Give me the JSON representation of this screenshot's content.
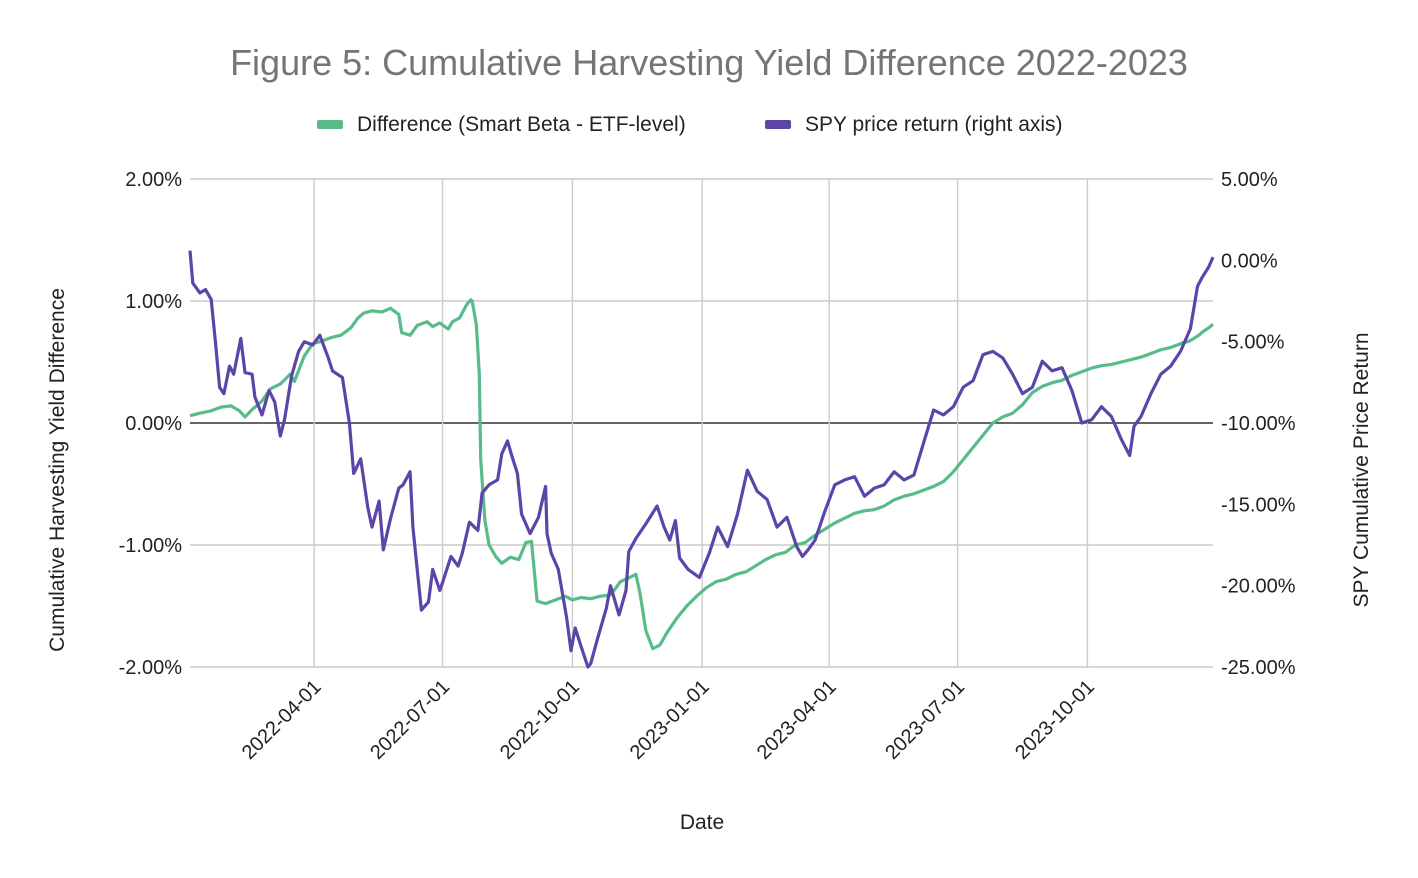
{
  "chart_data": {
    "type": "line",
    "title": "Figure 5: Cumulative Harvesting Yield Difference 2022-2023",
    "xlabel": "Date",
    "ylabel_left": "Cumulative Harvesting Yield Difference",
    "ylabel_right": "SPY Cumulative Price Return",
    "legend_position": "top",
    "grid": true,
    "x_range": [
      "2022-01-03",
      "2023-12-29"
    ],
    "x_ticks": [
      "2022-04-01",
      "2022-07-01",
      "2022-10-01",
      "2023-01-01",
      "2023-04-01",
      "2023-07-01",
      "2023-10-01"
    ],
    "ylim_left": [
      -0.02,
      0.02
    ],
    "ylim_right": [
      -0.25,
      0.05
    ],
    "y_ticks_left": [
      "2.00%",
      "1.00%",
      "0.00%",
      "-1.00%",
      "-2.00%"
    ],
    "y_ticks_right": [
      "5.00%",
      "0.00%",
      "-5.00%",
      "-10.00%",
      "-15.00%",
      "-20.00%",
      "-25.00%"
    ],
    "colors": {
      "difference": "#57bb8a",
      "spy": "#5b45a8"
    },
    "series": [
      {
        "name": "Difference (Smart Beta - ETF-level)",
        "axis": "left",
        "points": [
          [
            "2022-01-03",
            0.0006
          ],
          [
            "2022-01-10",
            0.0008
          ],
          [
            "2022-01-18",
            0.001
          ],
          [
            "2022-01-25",
            0.0013
          ],
          [
            "2022-02-01",
            0.0014
          ],
          [
            "2022-02-07",
            0.001
          ],
          [
            "2022-02-11",
            0.0005
          ],
          [
            "2022-02-16",
            0.0011
          ],
          [
            "2022-02-23",
            0.0018
          ],
          [
            "2022-03-01",
            0.0028
          ],
          [
            "2022-03-08",
            0.0032
          ],
          [
            "2022-03-15",
            0.004
          ],
          [
            "2022-03-18",
            0.0034
          ],
          [
            "2022-03-25",
            0.0055
          ],
          [
            "2022-03-31",
            0.0065
          ],
          [
            "2022-04-06",
            0.0067
          ],
          [
            "2022-04-13",
            0.007
          ],
          [
            "2022-04-20",
            0.0072
          ],
          [
            "2022-04-27",
            0.0078
          ],
          [
            "2022-05-02",
            0.0086
          ],
          [
            "2022-05-06",
            0.009
          ],
          [
            "2022-05-12",
            0.0092
          ],
          [
            "2022-05-19",
            0.0091
          ],
          [
            "2022-05-25",
            0.0094
          ],
          [
            "2022-05-31",
            0.0089
          ],
          [
            "2022-06-02",
            0.0074
          ],
          [
            "2022-06-08",
            0.0072
          ],
          [
            "2022-06-13",
            0.008
          ],
          [
            "2022-06-20",
            0.0083
          ],
          [
            "2022-06-24",
            0.0079
          ],
          [
            "2022-06-29",
            0.0082
          ],
          [
            "2022-07-05",
            0.0077
          ],
          [
            "2022-07-08",
            0.0083
          ],
          [
            "2022-07-13",
            0.0086
          ],
          [
            "2022-07-18",
            0.0097
          ],
          [
            "2022-07-21",
            0.0101
          ],
          [
            "2022-07-22",
            0.01
          ],
          [
            "2022-07-25",
            0.008
          ],
          [
            "2022-07-27",
            0.004
          ],
          [
            "2022-07-28",
            -0.003
          ],
          [
            "2022-07-31",
            -0.008
          ],
          [
            "2022-08-03",
            -0.01
          ],
          [
            "2022-08-08",
            -0.011
          ],
          [
            "2022-08-12",
            -0.0115
          ],
          [
            "2022-08-18",
            -0.011
          ],
          [
            "2022-08-24",
            -0.0112
          ],
          [
            "2022-08-29",
            -0.0098
          ],
          [
            "2022-09-02",
            -0.0097
          ],
          [
            "2022-09-06",
            -0.0146
          ],
          [
            "2022-09-12",
            -0.0148
          ],
          [
            "2022-09-19",
            -0.0145
          ],
          [
            "2022-09-26",
            -0.0142
          ],
          [
            "2022-10-01",
            -0.0145
          ],
          [
            "2022-10-07",
            -0.0143
          ],
          [
            "2022-10-14",
            -0.0144
          ],
          [
            "2022-10-21",
            -0.0142
          ],
          [
            "2022-10-28",
            -0.0141
          ],
          [
            "2022-11-01",
            -0.0135
          ],
          [
            "2022-11-04",
            -0.013
          ],
          [
            "2022-11-10",
            -0.0127
          ],
          [
            "2022-11-15",
            -0.0124
          ],
          [
            "2022-11-18",
            -0.014
          ],
          [
            "2022-11-22",
            -0.017
          ],
          [
            "2022-11-27",
            -0.0185
          ],
          [
            "2022-12-02",
            -0.0182
          ],
          [
            "2022-12-07",
            -0.0172
          ],
          [
            "2022-12-14",
            -0.016
          ],
          [
            "2022-12-21",
            -0.015
          ],
          [
            "2022-12-28",
            -0.0142
          ],
          [
            "2023-01-04",
            -0.0135
          ],
          [
            "2023-01-11",
            -0.013
          ],
          [
            "2023-01-18",
            -0.0128
          ],
          [
            "2023-01-25",
            -0.0124
          ],
          [
            "2023-02-01",
            -0.0122
          ],
          [
            "2023-02-08",
            -0.0117
          ],
          [
            "2023-02-15",
            -0.0112
          ],
          [
            "2023-02-22",
            -0.0108
          ],
          [
            "2023-03-01",
            -0.0106
          ],
          [
            "2023-03-08",
            -0.01
          ],
          [
            "2023-03-15",
            -0.0098
          ],
          [
            "2023-03-22",
            -0.0092
          ],
          [
            "2023-03-29",
            -0.0087
          ],
          [
            "2023-04-05",
            -0.0082
          ],
          [
            "2023-04-12",
            -0.0078
          ],
          [
            "2023-04-19",
            -0.0074
          ],
          [
            "2023-04-26",
            -0.0072
          ],
          [
            "2023-05-03",
            -0.0071
          ],
          [
            "2023-05-10",
            -0.0068
          ],
          [
            "2023-05-17",
            -0.0063
          ],
          [
            "2023-05-24",
            -0.006
          ],
          [
            "2023-05-31",
            -0.0058
          ],
          [
            "2023-06-07",
            -0.0055
          ],
          [
            "2023-06-14",
            -0.0052
          ],
          [
            "2023-06-21",
            -0.0048
          ],
          [
            "2023-06-28",
            -0.004
          ],
          [
            "2023-07-05",
            -0.003
          ],
          [
            "2023-07-12",
            -0.002
          ],
          [
            "2023-07-19",
            -0.001
          ],
          [
            "2023-07-26",
            0.0
          ],
          [
            "2023-08-02",
            0.0005
          ],
          [
            "2023-08-09",
            0.0008
          ],
          [
            "2023-08-16",
            0.0015
          ],
          [
            "2023-08-23",
            0.0025
          ],
          [
            "2023-08-30",
            0.003
          ],
          [
            "2023-09-06",
            0.0033
          ],
          [
            "2023-09-13",
            0.0035
          ],
          [
            "2023-09-20",
            0.0039
          ],
          [
            "2023-09-27",
            0.0042
          ],
          [
            "2023-10-04",
            0.0045
          ],
          [
            "2023-10-11",
            0.0047
          ],
          [
            "2023-10-18",
            0.0048
          ],
          [
            "2023-10-25",
            0.005
          ],
          [
            "2023-11-01",
            0.0052
          ],
          [
            "2023-11-08",
            0.0054
          ],
          [
            "2023-11-15",
            0.0057
          ],
          [
            "2023-11-22",
            0.006
          ],
          [
            "2023-11-29",
            0.0062
          ],
          [
            "2023-12-04",
            0.0064
          ],
          [
            "2023-12-08",
            0.0066
          ],
          [
            "2023-12-12",
            0.0067
          ],
          [
            "2023-12-15",
            0.0069
          ],
          [
            "2023-12-19",
            0.0072
          ],
          [
            "2023-12-22",
            0.0075
          ],
          [
            "2023-12-26",
            0.0078
          ],
          [
            "2023-12-29",
            0.0081
          ]
        ]
      },
      {
        "name": "SPY price return (right axis)",
        "axis": "right",
        "points": [
          [
            "2022-01-03",
            0.006
          ],
          [
            "2022-01-05",
            -0.014
          ],
          [
            "2022-01-10",
            -0.02
          ],
          [
            "2022-01-14",
            -0.018
          ],
          [
            "2022-01-18",
            -0.024
          ],
          [
            "2022-01-21",
            -0.05
          ],
          [
            "2022-01-24",
            -0.078
          ],
          [
            "2022-01-27",
            -0.082
          ],
          [
            "2022-01-31",
            -0.065
          ],
          [
            "2022-02-03",
            -0.07
          ],
          [
            "2022-02-08",
            -0.048
          ],
          [
            "2022-02-11",
            -0.069
          ],
          [
            "2022-02-16",
            -0.07
          ],
          [
            "2022-02-18",
            -0.084
          ],
          [
            "2022-02-23",
            -0.095
          ],
          [
            "2022-02-28",
            -0.08
          ],
          [
            "2022-03-04",
            -0.087
          ],
          [
            "2022-03-08",
            -0.108
          ],
          [
            "2022-03-11",
            -0.098
          ],
          [
            "2022-03-16",
            -0.071
          ],
          [
            "2022-03-21",
            -0.056
          ],
          [
            "2022-03-25",
            -0.05
          ],
          [
            "2022-03-31",
            -0.052
          ],
          [
            "2022-04-05",
            -0.046
          ],
          [
            "2022-04-11",
            -0.06
          ],
          [
            "2022-04-14",
            -0.068
          ],
          [
            "2022-04-21",
            -0.072
          ],
          [
            "2022-04-26",
            -0.1
          ],
          [
            "2022-04-29",
            -0.131
          ],
          [
            "2022-05-04",
            -0.122
          ],
          [
            "2022-05-09",
            -0.152
          ],
          [
            "2022-05-12",
            -0.164
          ],
          [
            "2022-05-17",
            -0.148
          ],
          [
            "2022-05-20",
            -0.178
          ],
          [
            "2022-05-25",
            -0.159
          ],
          [
            "2022-05-31",
            -0.14
          ],
          [
            "2022-06-03",
            -0.138
          ],
          [
            "2022-06-08",
            -0.13
          ],
          [
            "2022-06-10",
            -0.164
          ],
          [
            "2022-06-13",
            -0.19
          ],
          [
            "2022-06-16",
            -0.215
          ],
          [
            "2022-06-21",
            -0.21
          ],
          [
            "2022-06-24",
            -0.19
          ],
          [
            "2022-06-29",
            -0.203
          ],
          [
            "2022-07-01",
            -0.198
          ],
          [
            "2022-07-07",
            -0.182
          ],
          [
            "2022-07-12",
            -0.188
          ],
          [
            "2022-07-15",
            -0.18
          ],
          [
            "2022-07-20",
            -0.161
          ],
          [
            "2022-07-26",
            -0.166
          ],
          [
            "2022-07-29",
            -0.143
          ],
          [
            "2022-08-03",
            -0.138
          ],
          [
            "2022-08-09",
            -0.135
          ],
          [
            "2022-08-12",
            -0.119
          ],
          [
            "2022-08-16",
            -0.111
          ],
          [
            "2022-08-19",
            -0.12
          ],
          [
            "2022-08-23",
            -0.131
          ],
          [
            "2022-08-26",
            -0.156
          ],
          [
            "2022-09-01",
            -0.168
          ],
          [
            "2022-09-07",
            -0.158
          ],
          [
            "2022-09-12",
            -0.139
          ],
          [
            "2022-09-13",
            -0.168
          ],
          [
            "2022-09-16",
            -0.18
          ],
          [
            "2022-09-21",
            -0.19
          ],
          [
            "2022-09-27",
            -0.22
          ],
          [
            "2022-09-30",
            -0.24
          ],
          [
            "2022-10-03",
            -0.226
          ],
          [
            "2022-10-07",
            -0.237
          ],
          [
            "2022-10-12",
            -0.25
          ],
          [
            "2022-10-14",
            -0.248
          ],
          [
            "2022-10-19",
            -0.232
          ],
          [
            "2022-10-25",
            -0.214
          ],
          [
            "2022-10-28",
            -0.2
          ],
          [
            "2022-11-03",
            -0.218
          ],
          [
            "2022-11-08",
            -0.203
          ],
          [
            "2022-11-10",
            -0.179
          ],
          [
            "2022-11-15",
            -0.171
          ],
          [
            "2022-11-22",
            -0.162
          ],
          [
            "2022-11-30",
            -0.151
          ],
          [
            "2022-12-05",
            -0.164
          ],
          [
            "2022-12-09",
            -0.172
          ],
          [
            "2022-12-13",
            -0.16
          ],
          [
            "2022-12-16",
            -0.183
          ],
          [
            "2022-12-22",
            -0.19
          ],
          [
            "2022-12-30",
            -0.195
          ],
          [
            "2023-01-06",
            -0.18
          ],
          [
            "2023-01-12",
            -0.164
          ],
          [
            "2023-01-19",
            -0.176
          ],
          [
            "2023-01-26",
            -0.156
          ],
          [
            "2023-02-02",
            -0.129
          ],
          [
            "2023-02-09",
            -0.142
          ],
          [
            "2023-02-16",
            -0.147
          ],
          [
            "2023-02-23",
            -0.164
          ],
          [
            "2023-03-02",
            -0.158
          ],
          [
            "2023-03-09",
            -0.176
          ],
          [
            "2023-03-13",
            -0.182
          ],
          [
            "2023-03-17",
            -0.178
          ],
          [
            "2023-03-22",
            -0.172
          ],
          [
            "2023-03-29",
            -0.154
          ],
          [
            "2023-04-05",
            -0.138
          ],
          [
            "2023-04-12",
            -0.135
          ],
          [
            "2023-04-19",
            -0.133
          ],
          [
            "2023-04-26",
            -0.145
          ],
          [
            "2023-05-03",
            -0.14
          ],
          [
            "2023-05-10",
            -0.138
          ],
          [
            "2023-05-17",
            -0.13
          ],
          [
            "2023-05-24",
            -0.135
          ],
          [
            "2023-05-31",
            -0.132
          ],
          [
            "2023-06-07",
            -0.112
          ],
          [
            "2023-06-14",
            -0.092
          ],
          [
            "2023-06-21",
            -0.095
          ],
          [
            "2023-06-28",
            -0.09
          ],
          [
            "2023-07-05",
            -0.078
          ],
          [
            "2023-07-12",
            -0.074
          ],
          [
            "2023-07-19",
            -0.058
          ],
          [
            "2023-07-26",
            -0.056
          ],
          [
            "2023-08-02",
            -0.06
          ],
          [
            "2023-08-09",
            -0.07
          ],
          [
            "2023-08-16",
            -0.082
          ],
          [
            "2023-08-23",
            -0.078
          ],
          [
            "2023-08-30",
            -0.062
          ],
          [
            "2023-09-06",
            -0.068
          ],
          [
            "2023-09-13",
            -0.066
          ],
          [
            "2023-09-20",
            -0.08
          ],
          [
            "2023-09-27",
            -0.1
          ],
          [
            "2023-10-04",
            -0.098
          ],
          [
            "2023-10-11",
            -0.09
          ],
          [
            "2023-10-18",
            -0.096
          ],
          [
            "2023-10-25",
            -0.11
          ],
          [
            "2023-10-31",
            -0.12
          ],
          [
            "2023-11-03",
            -0.102
          ],
          [
            "2023-11-08",
            -0.096
          ],
          [
            "2023-11-15",
            -0.082
          ],
          [
            "2023-11-22",
            -0.07
          ],
          [
            "2023-11-29",
            -0.065
          ],
          [
            "2023-12-06",
            -0.056
          ],
          [
            "2023-12-13",
            -0.042
          ],
          [
            "2023-12-18",
            -0.016
          ],
          [
            "2023-12-21",
            -0.011
          ],
          [
            "2023-12-26",
            -0.004
          ],
          [
            "2023-12-29",
            0.002
          ]
        ]
      }
    ]
  }
}
